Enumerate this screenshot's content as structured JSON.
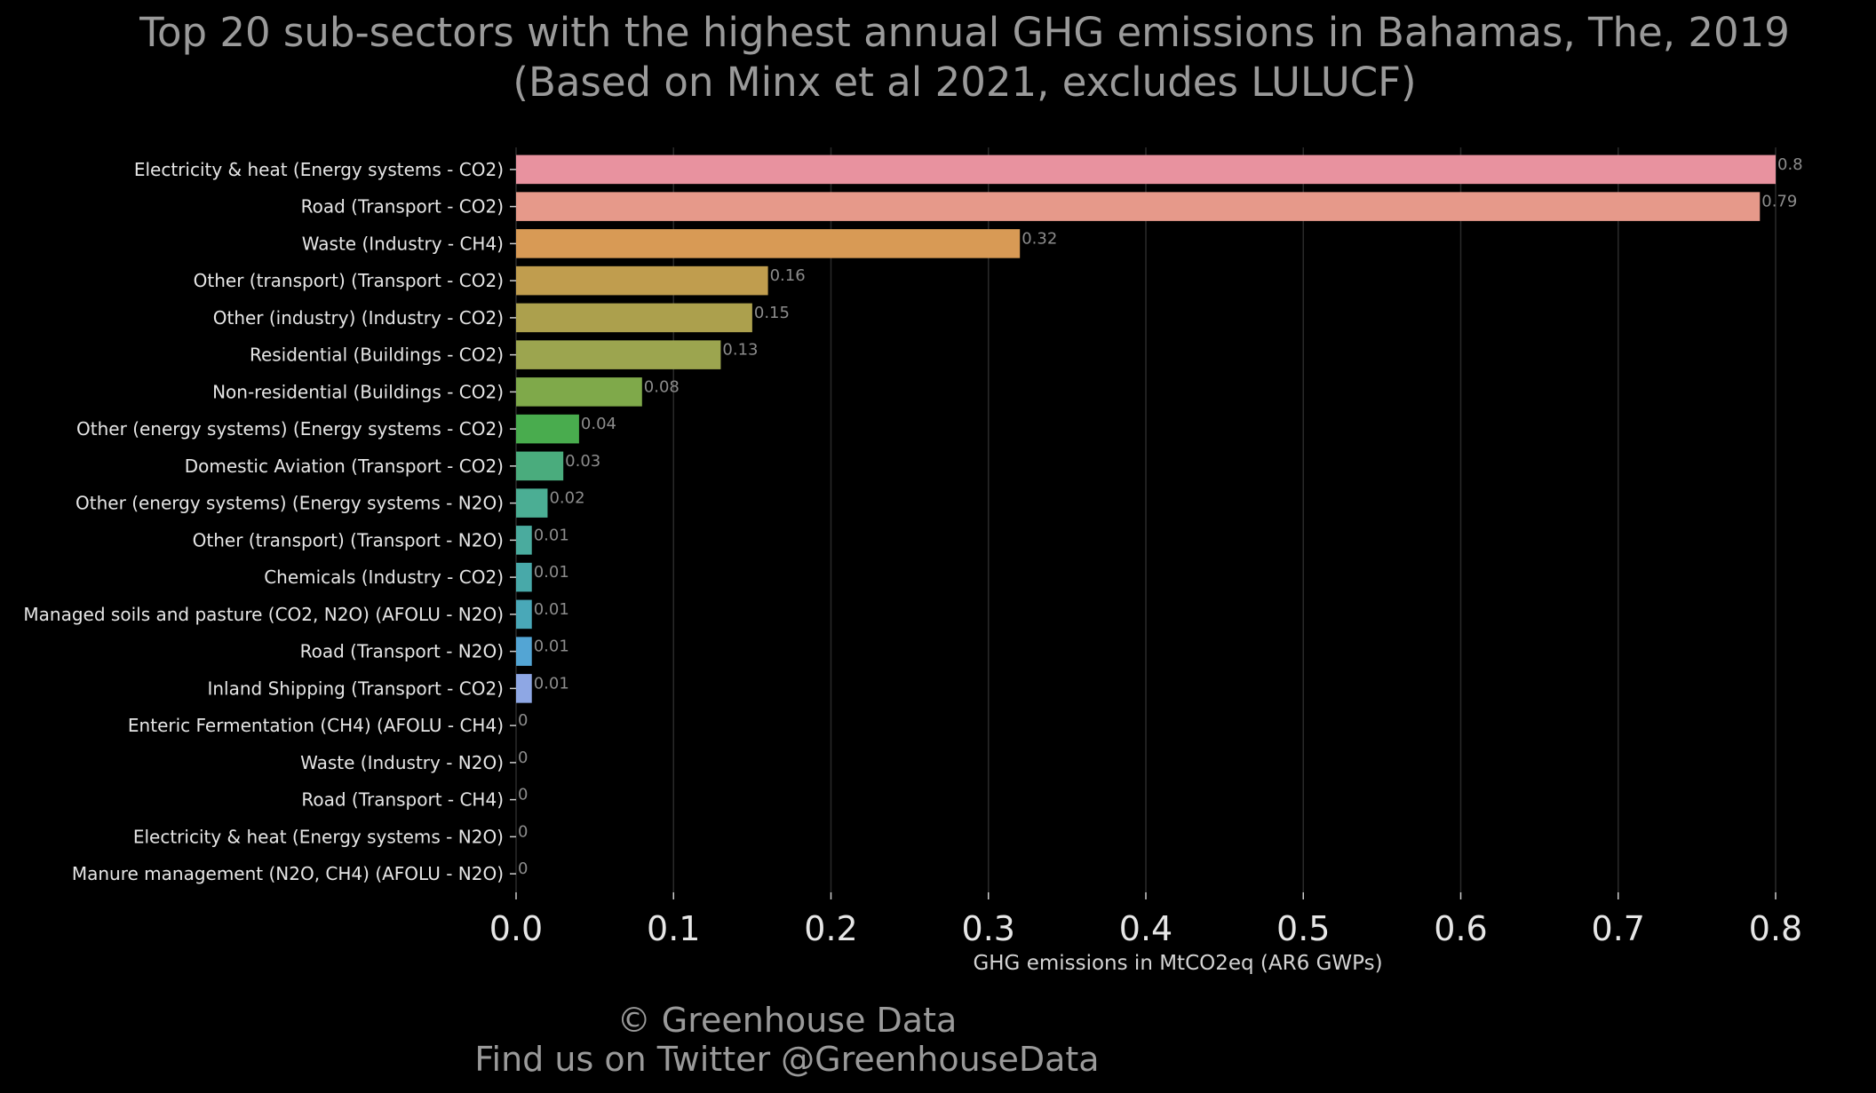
{
  "title": {
    "line1": "Top 20 sub-sectors with the highest annual GHG emissions in Bahamas, The, 2019",
    "line2": "(Based on Minx et al 2021, excludes LULUCF)"
  },
  "footer": {
    "copyright": "© Greenhouse Data",
    "twitter": "Find us on Twitter @GreenhouseData"
  },
  "chart_data": {
    "type": "bar",
    "orientation": "horizontal",
    "title": "Top 20 sub-sectors with the highest annual GHG emissions in Bahamas, The, 2019",
    "subtitle": "(Based on Minx et al 2021, excludes LULUCF)",
    "xlabel": "GHG emissions in MtCO2eq (AR6 GWPs)",
    "ylabel": "",
    "xlim": [
      0,
      0.8
    ],
    "xticks": [
      "0.0",
      "0.1",
      "0.2",
      "0.3",
      "0.4",
      "0.5",
      "0.6",
      "0.7",
      "0.8"
    ],
    "grid": "vertical",
    "categories": [
      "Electricity & heat (Energy systems - CO2)",
      "Road (Transport - CO2)",
      "Waste (Industry - CH4)",
      "Other (transport) (Transport - CO2)",
      "Other (industry) (Industry - CO2)",
      "Residential (Buildings - CO2)",
      "Non-residential (Buildings - CO2)",
      "Other (energy systems) (Energy systems - CO2)",
      "Domestic Aviation (Transport - CO2)",
      "Other (energy systems) (Energy systems - N2O)",
      "Other (transport) (Transport - N2O)",
      "Chemicals (Industry - CO2)",
      "Managed soils and pasture (CO2, N2O) (AFOLU - N2O)",
      "Road (Transport - N2O)",
      "Inland Shipping (Transport - CO2)",
      "Enteric Fermentation (CH4) (AFOLU - CH4)",
      "Waste (Industry - N2O)",
      "Road (Transport - CH4)",
      "Electricity & heat (Energy systems - N2O)",
      "Manure management (N2O, CH4) (AFOLU - N2O)"
    ],
    "values": [
      0.8,
      0.79,
      0.32,
      0.16,
      0.15,
      0.13,
      0.08,
      0.04,
      0.03,
      0.02,
      0.01,
      0.01,
      0.01,
      0.01,
      0.01,
      0,
      0,
      0,
      0,
      0
    ],
    "value_labels": [
      "0.8",
      "0.79",
      "0.32",
      "0.16",
      "0.15",
      "0.13",
      "0.08",
      "0.04",
      "0.03",
      "0.02",
      "0.01",
      "0.01",
      "0.01",
      "0.01",
      "0.01",
      "0",
      "0",
      "0",
      "0",
      "0"
    ],
    "colors": [
      "#e8929f",
      "#e6998a",
      "#d89a55",
      "#c09d4e",
      "#aca04d",
      "#9ca54f",
      "#7fa94a",
      "#49ac4e",
      "#4aac7d",
      "#4bae94",
      "#4aab9e",
      "#48a9a9",
      "#49a8b8",
      "#53a5d4",
      "#8ea7e4",
      "#b0a0e8",
      "#c69be6",
      "#dd93d8",
      "#e891c4",
      "#e891b0"
    ]
  }
}
